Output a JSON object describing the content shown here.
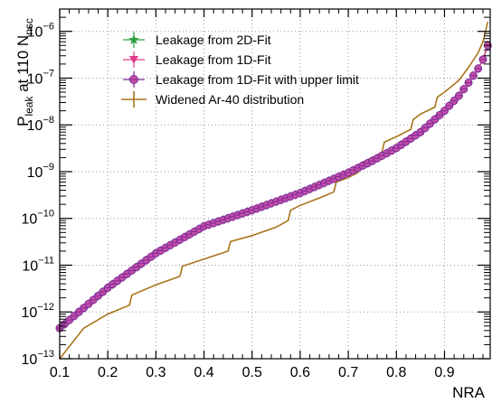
{
  "chart_data": {
    "type": "line",
    "xlabel": "NRA",
    "ylabel": {
      "main": "P",
      "sub1": "leak",
      "mid": " at 110 N",
      "sub2": "nsc"
    },
    "xlim": [
      0.1,
      0.995
    ],
    "ylim": [
      1e-13,
      3e-06
    ],
    "yscale": "log",
    "grid": true,
    "legend_position": "top-left",
    "x_ticks": [
      {
        "value": 0.1,
        "label": "0.1"
      },
      {
        "value": 0.2,
        "label": "0.2"
      },
      {
        "value": 0.3,
        "label": "0.3"
      },
      {
        "value": 0.4,
        "label": "0.4"
      },
      {
        "value": 0.5,
        "label": "0.5"
      },
      {
        "value": 0.6,
        "label": "0.6"
      },
      {
        "value": 0.7,
        "label": "0.7"
      },
      {
        "value": 0.8,
        "label": "0.8"
      },
      {
        "value": 0.9,
        "label": "0.9"
      }
    ],
    "y_ticks": [
      {
        "exp": -13,
        "base": "10",
        "sup": "−13"
      },
      {
        "exp": -12,
        "base": "10",
        "sup": "−12"
      },
      {
        "exp": -11,
        "base": "10",
        "sup": "−11"
      },
      {
        "exp": -10,
        "base": "10",
        "sup": "−10"
      },
      {
        "exp": -9,
        "base": "10",
        "sup": "−9"
      },
      {
        "exp": -8,
        "base": "10",
        "sup": "−8"
      },
      {
        "exp": -7,
        "base": "10",
        "sup": "−7"
      },
      {
        "exp": -6,
        "base": "10",
        "sup": "−6"
      }
    ],
    "series": [
      {
        "name": "Leakage from 2D-Fit",
        "color": "#2e9e3e",
        "marker": "star",
        "x": [
          0.1,
          0.2,
          0.3,
          0.4,
          0.5,
          0.6,
          0.7,
          0.75,
          0.8,
          0.85,
          0.9,
          0.93,
          0.95,
          0.97,
          0.98,
          0.99
        ],
        "y": [
          4.5e-13,
          3.3e-12,
          1.8e-11,
          6.8e-11,
          1.5e-10,
          3.5e-10,
          9.5e-10,
          1.7e-09,
          3.2e-09,
          7e-09,
          2e-08,
          4.2e-08,
          8e-08,
          1.6e-07,
          2.5e-07,
          5e-07
        ]
      },
      {
        "name": "Leakage from 1D-Fit",
        "color": "#e23b8e",
        "marker": "triangle-down",
        "x": [
          0.1,
          0.2,
          0.3,
          0.4,
          0.5,
          0.6,
          0.7,
          0.75,
          0.8,
          0.85,
          0.9,
          0.93,
          0.95,
          0.97,
          0.98,
          0.99
        ],
        "y": [
          4.5e-13,
          3.3e-12,
          1.8e-11,
          6.8e-11,
          1.5e-10,
          3.5e-10,
          9.5e-10,
          1.7e-09,
          3.2e-09,
          7e-09,
          2e-08,
          4.2e-08,
          8e-08,
          1.6e-07,
          2.5e-07,
          5e-07
        ]
      },
      {
        "name": "Leakage from 1D-Fit with upper limit",
        "color": "#7a2a9c",
        "fill": "#c64fa6",
        "marker": "circle-cross",
        "x": [
          0.1,
          0.2,
          0.3,
          0.4,
          0.5,
          0.6,
          0.7,
          0.75,
          0.8,
          0.85,
          0.9,
          0.93,
          0.95,
          0.97,
          0.98,
          0.99
        ],
        "y": [
          4.5e-13,
          3.3e-12,
          1.8e-11,
          6.8e-11,
          1.5e-10,
          3.5e-10,
          9.5e-10,
          1.7e-09,
          3.2e-09,
          7e-09,
          2e-08,
          4.2e-08,
          8e-08,
          1.6e-07,
          2.5e-07,
          5e-07
        ],
        "point_step": 0.01
      },
      {
        "name": "Widened Ar-40 distribution",
        "color": "#a8741a",
        "marker": "line",
        "x": [
          0.1,
          0.15,
          0.2,
          0.245,
          0.25,
          0.3,
          0.35,
          0.355,
          0.4,
          0.45,
          0.455,
          0.5,
          0.55,
          0.575,
          0.58,
          0.6,
          0.65,
          0.67,
          0.675,
          0.7,
          0.72,
          0.725,
          0.75,
          0.77,
          0.775,
          0.8,
          0.83,
          0.835,
          0.85,
          0.88,
          0.885,
          0.9,
          0.93,
          0.95,
          0.97,
          0.98,
          0.99
        ],
        "y": [
          1e-13,
          4.5e-13,
          9e-13,
          1.4e-12,
          2.3e-12,
          3.8e-12,
          5.8e-12,
          9.5e-12,
          1.35e-11,
          2e-11,
          3.2e-11,
          4.3e-11,
          6.5e-11,
          9e-11,
          1.5e-10,
          1.9e-10,
          3e-10,
          3.7e-10,
          6e-10,
          7.5e-10,
          9.5e-10,
          1.5e-09,
          2e-09,
          2.6e-09,
          4.3e-09,
          5.6e-09,
          8e-09,
          1.3e-08,
          1.7e-08,
          2.4e-08,
          3.9e-08,
          5e-08,
          9e-08,
          1.7e-07,
          3.5e-07,
          6e-07,
          1.6e-06
        ]
      }
    ]
  }
}
